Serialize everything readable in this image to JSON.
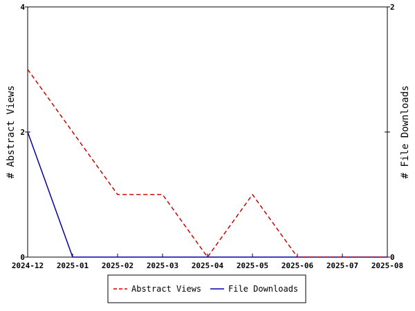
{
  "chart_data": {
    "type": "line",
    "x": [
      "2024-12",
      "2025-01",
      "2025-02",
      "2025-03",
      "2025-04",
      "2025-05",
      "2025-06",
      "2025-07",
      "2025-08"
    ],
    "series": [
      {
        "name": "Abstract Views",
        "axis": "left",
        "color": "#cc0000",
        "style": "dashed",
        "values": [
          3,
          2,
          1,
          1,
          0,
          1,
          0,
          0,
          0
        ]
      },
      {
        "name": "File Downloads",
        "axis": "right",
        "color": "#0000aa",
        "style": "solid",
        "values": [
          1,
          0,
          0,
          0,
          0,
          0,
          0,
          0,
          0
        ]
      }
    ],
    "ylabel_left": "# Abstract Views",
    "ylabel_right": "# File Downloads",
    "ylim_left": [
      0,
      4
    ],
    "ylim_right": [
      0,
      2
    ],
    "yticks_left": [
      "0",
      "2",
      "4"
    ],
    "yticks_right": [
      "0",
      "1",
      "2"
    ],
    "grid": false,
    "legend_position": "bottom"
  }
}
